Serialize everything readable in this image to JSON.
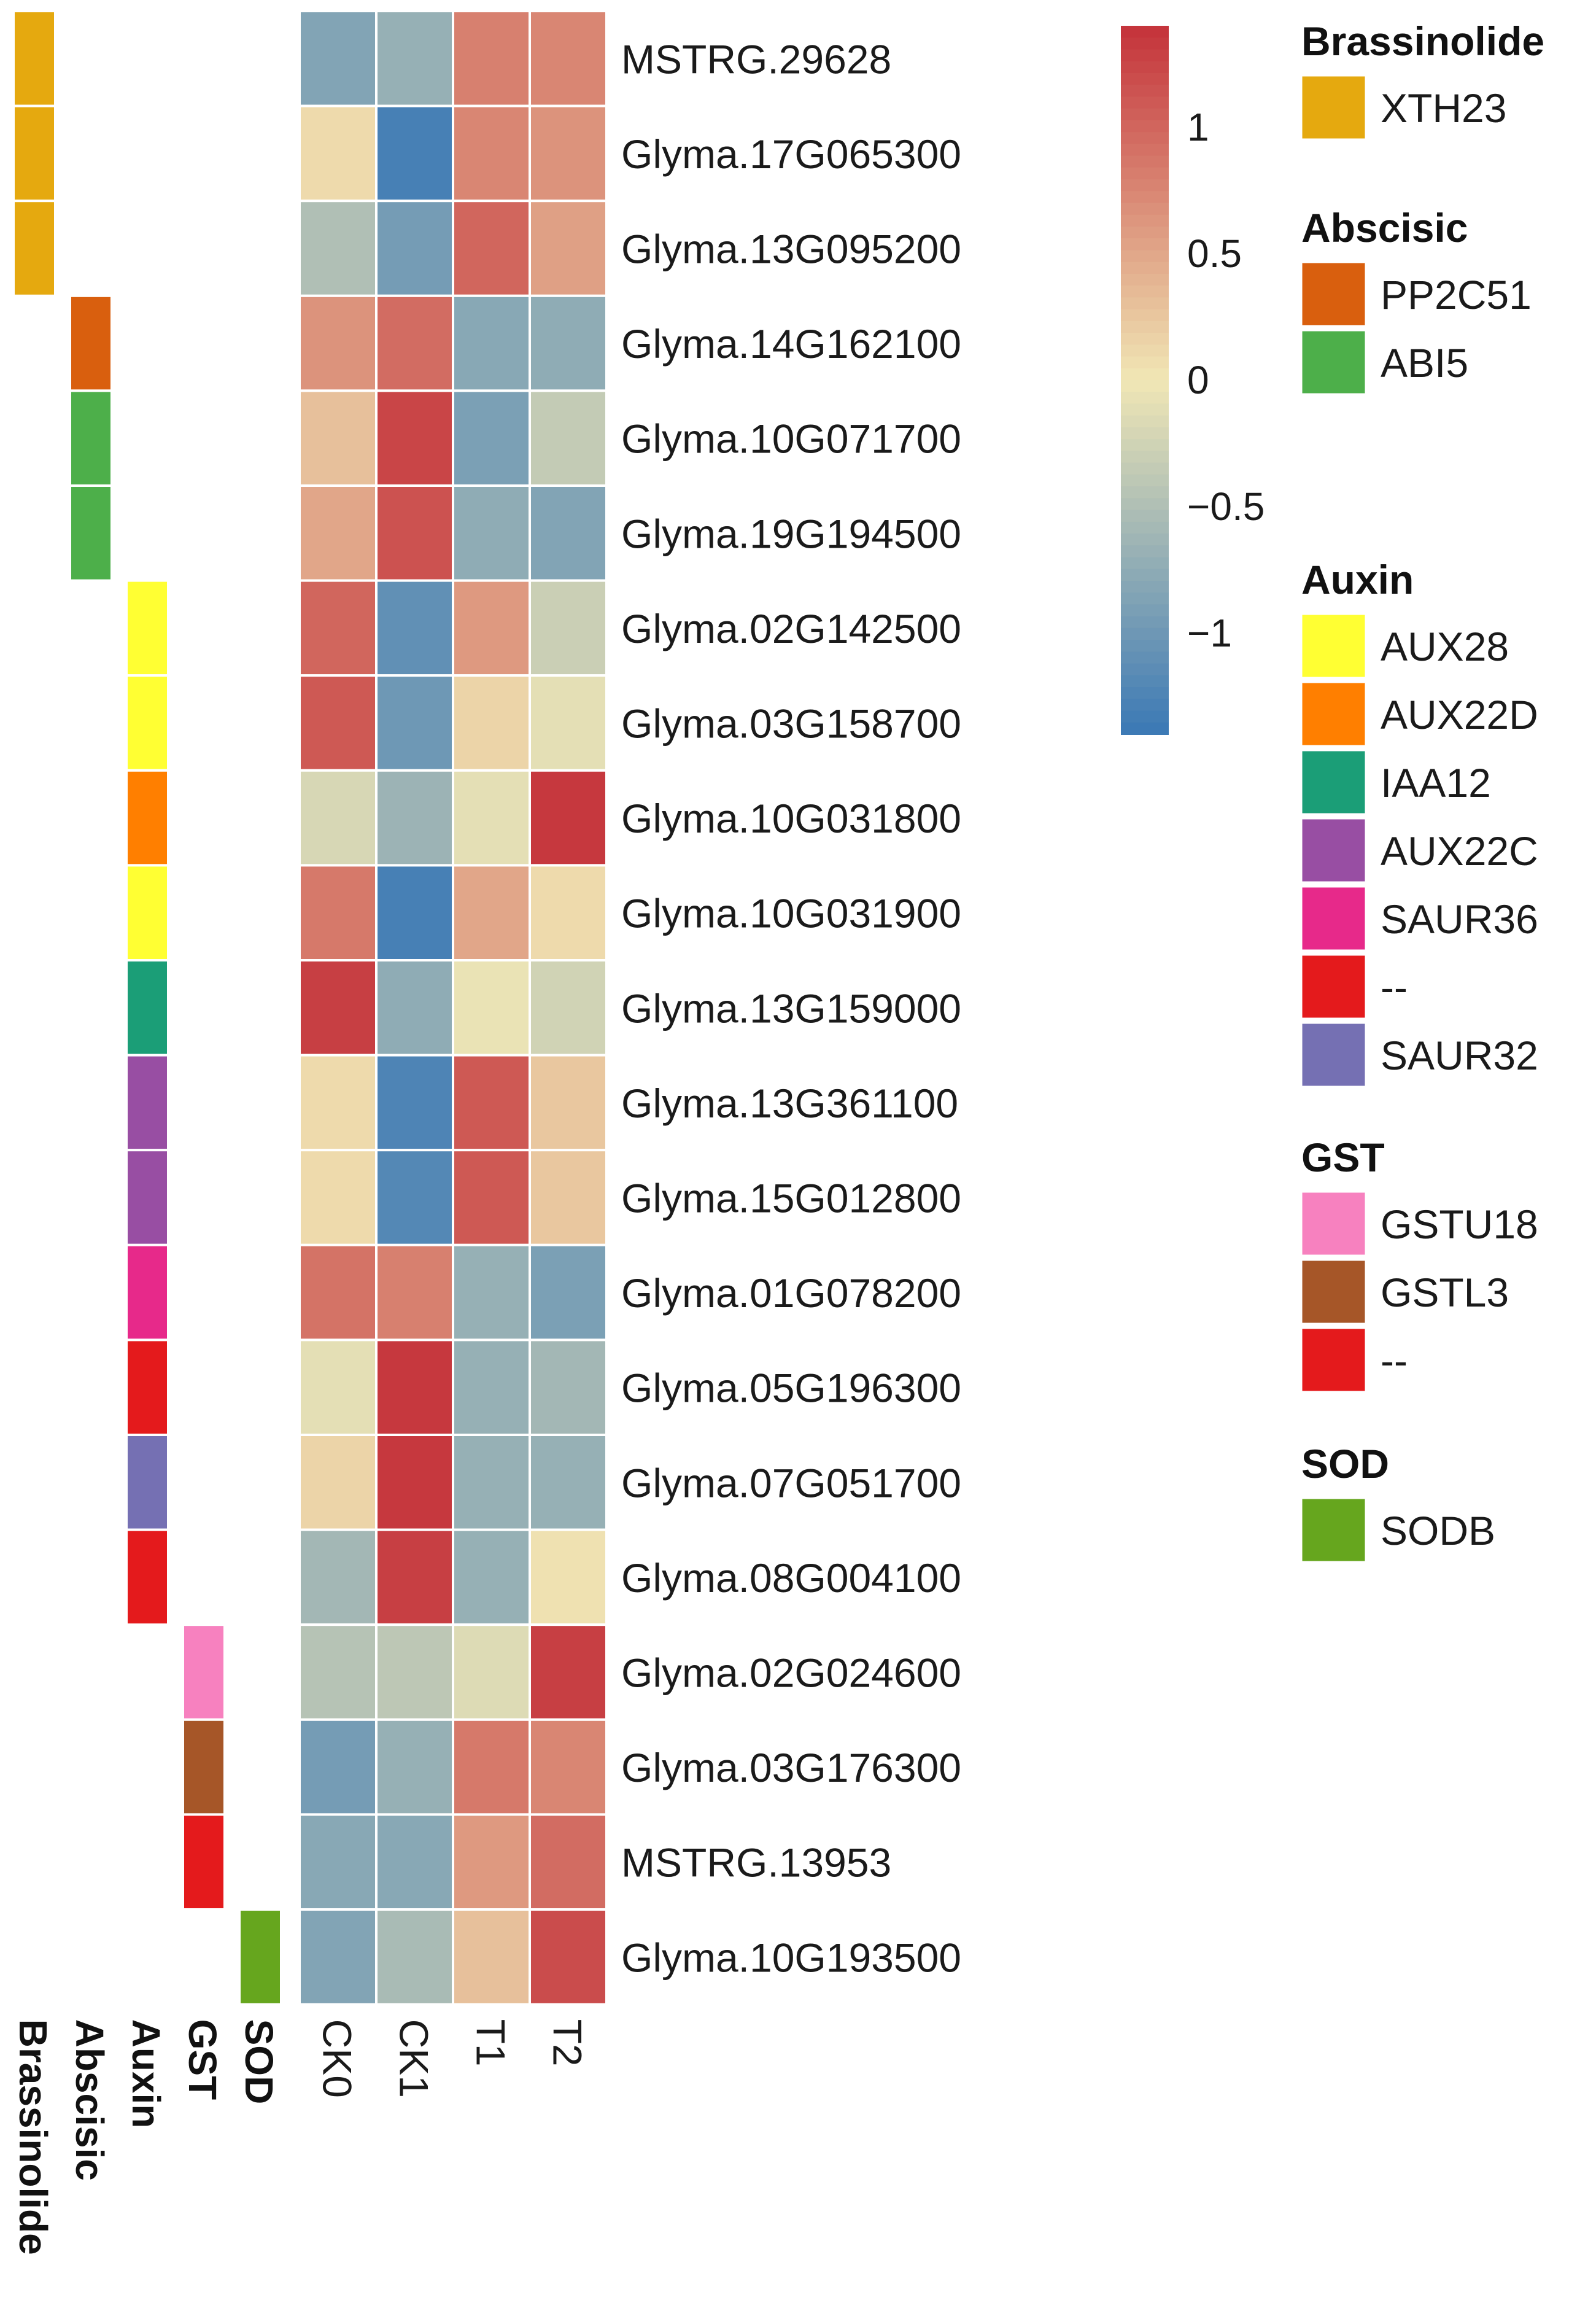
{
  "chart_data": {
    "type": "heatmap",
    "columns": [
      "CK0",
      "CK1",
      "T1",
      "T2"
    ],
    "rows": [
      {
        "label": "MSTRG.29628",
        "group": "Brassinolide",
        "gene": "XTH23",
        "values": [
          -0.85,
          -0.7,
          0.8,
          0.75
        ]
      },
      {
        "label": "Glyma.17G065300",
        "group": "Brassinolide",
        "gene": "XTH23",
        "values": [
          0.1,
          -1.3,
          0.75,
          0.65
        ]
      },
      {
        "label": "Glyma.13G095200",
        "group": "Brassinolide",
        "gene": "XTH23",
        "values": [
          -0.5,
          -0.95,
          1.0,
          0.55
        ]
      },
      {
        "label": "Glyma.14G162100",
        "group": "Abscisic",
        "gene": "PP2C51",
        "values": [
          0.65,
          0.95,
          -0.8,
          -0.75
        ]
      },
      {
        "label": "Glyma.10G071700",
        "group": "Abscisic",
        "gene": "ABI5",
        "values": [
          0.3,
          1.25,
          -0.9,
          -0.35
        ]
      },
      {
        "label": "Glyma.19G194500",
        "group": "Abscisic",
        "gene": "ABI5",
        "values": [
          0.5,
          1.15,
          -0.75,
          -0.85
        ]
      },
      {
        "label": "Glyma.02G142500",
        "group": "Auxin",
        "gene": "AUX28",
        "values": [
          1.0,
          -1.1,
          0.6,
          -0.3
        ]
      },
      {
        "label": "Glyma.03G158700",
        "group": "Auxin",
        "gene": "AUX28",
        "values": [
          1.1,
          -1.0,
          0.15,
          -0.1
        ]
      },
      {
        "label": "Glyma.10G031800",
        "group": "Auxin",
        "gene": "AUX22D",
        "values": [
          -0.2,
          -0.65,
          -0.1,
          1.35
        ]
      },
      {
        "label": "Glyma.10G031900",
        "group": "Auxin",
        "gene": "AUX28",
        "values": [
          0.85,
          -1.3,
          0.5,
          0.1
        ]
      },
      {
        "label": "Glyma.13G159000",
        "group": "Auxin",
        "gene": "IAA12",
        "values": [
          1.3,
          -0.75,
          -0.05,
          -0.25
        ]
      },
      {
        "label": "Glyma.13G361100",
        "group": "Auxin",
        "gene": "AUX22C",
        "values": [
          0.1,
          -1.25,
          1.1,
          0.25
        ]
      },
      {
        "label": "Glyma.15G012800",
        "group": "Auxin",
        "gene": "AUX22C",
        "values": [
          0.1,
          -1.2,
          1.1,
          0.25
        ]
      },
      {
        "label": "Glyma.01G078200",
        "group": "Auxin",
        "gene": "SAUR36",
        "values": [
          0.9,
          0.8,
          -0.7,
          -0.9
        ]
      },
      {
        "label": "Glyma.05G196300",
        "group": "Auxin",
        "gene": "--",
        "values": [
          -0.1,
          1.35,
          -0.7,
          -0.6
        ]
      },
      {
        "label": "Glyma.07G051700",
        "group": "Auxin",
        "gene": "SAUR32",
        "values": [
          0.15,
          1.35,
          -0.7,
          -0.7
        ]
      },
      {
        "label": "Glyma.08G004100",
        "group": "Auxin",
        "gene": "--",
        "values": [
          -0.6,
          1.3,
          -0.7,
          0.05
        ]
      },
      {
        "label": "Glyma.02G024600",
        "group": "GST",
        "gene": "GSTU18",
        "values": [
          -0.45,
          -0.4,
          -0.15,
          1.3
        ]
      },
      {
        "label": "Glyma.03G176300",
        "group": "GST",
        "gene": "GSTL3",
        "values": [
          -0.95,
          -0.7,
          0.85,
          0.75
        ]
      },
      {
        "label": "MSTRG.13953",
        "group": "GST",
        "gene": "--",
        "values": [
          -0.8,
          -0.8,
          0.6,
          0.95
        ]
      },
      {
        "label": "Glyma.10G193500",
        "group": "SOD",
        "gene": "SODB",
        "values": [
          -0.85,
          -0.55,
          0.3,
          1.2
        ]
      }
    ],
    "annotation_tracks": [
      "Brassinolide",
      "Abscisic",
      "Auxin",
      "GST",
      "SOD"
    ],
    "annotation_colors": {
      "Brassinolide": {
        "XTH23": "#E5A90F"
      },
      "Abscisic": {
        "PP2C51": "#D95F0E",
        "ABI5": "#4DAF4A"
      },
      "Auxin": {
        "AUX28": "#FFFF33",
        "AUX22D": "#FF7F00",
        "IAA12": "#1B9E77",
        "AUX22C": "#984EA3",
        "SAUR36": "#E7298A",
        "--": "#E41A1C",
        "SAUR32": "#7570B3"
      },
      "GST": {
        "GSTU18": "#F781BF",
        "GSTL3": "#A65628",
        "--": "#E41A1C"
      },
      "SOD": {
        "SODB": "#66A61E"
      }
    },
    "legend_groups": [
      {
        "title": "Brassinolide",
        "items": [
          "XTH23"
        ]
      },
      {
        "title": "Abscisic",
        "items": [
          "PP2C51",
          "ABI5"
        ]
      },
      {
        "title": "Auxin",
        "items": [
          "AUX28",
          "AUX22D",
          "IAA12",
          "AUX22C",
          "SAUR36",
          "--",
          "SAUR32"
        ]
      },
      {
        "title": "GST",
        "items": [
          "GSTU18",
          "GSTL3",
          "--"
        ]
      },
      {
        "title": "SOD",
        "items": [
          "SODB"
        ]
      }
    ],
    "colorbar": {
      "range": [
        -1.4,
        1.4
      ],
      "ticks": [
        1,
        0.5,
        0,
        -0.5,
        -1
      ],
      "tick_labels": [
        "1",
        "0.5",
        "0",
        "−0.5",
        "−1"
      ],
      "colors": [
        "#3A78B5",
        "#F1E7B5",
        "#C4323A"
      ]
    }
  }
}
